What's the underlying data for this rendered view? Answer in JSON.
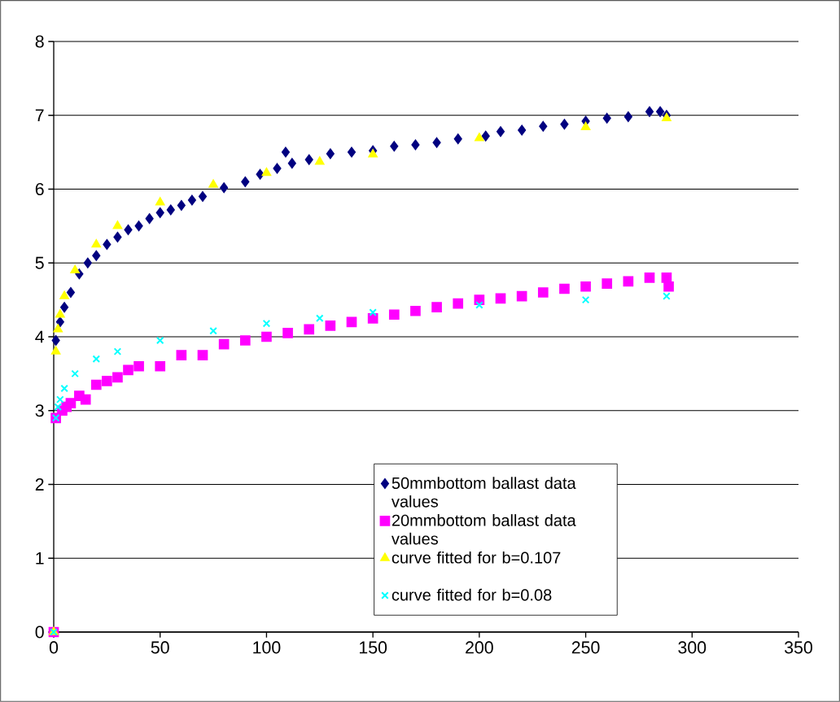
{
  "chart_data": {
    "type": "scatter",
    "xlim": [
      0,
      350
    ],
    "ylim": [
      0,
      8
    ],
    "xticks": [
      0,
      50,
      100,
      150,
      200,
      250,
      300,
      350
    ],
    "yticks": [
      0,
      1,
      2,
      3,
      4,
      5,
      6,
      7,
      8
    ],
    "grid": "y",
    "legend": "bottom right",
    "series": [
      {
        "name": "50mmbottom ballast data values",
        "color": "#000080",
        "marker": "diamond",
        "x": [
          0,
          1,
          3,
          5,
          8,
          12,
          16,
          20,
          25,
          30,
          35,
          40,
          45,
          50,
          55,
          60,
          65,
          70,
          80,
          90,
          97,
          105,
          109,
          112,
          120,
          130,
          140,
          150,
          160,
          170,
          180,
          190,
          203,
          210,
          220,
          230,
          240,
          250,
          260,
          270,
          280,
          285,
          288
        ],
        "values": [
          0,
          3.95,
          4.2,
          4.4,
          4.6,
          4.85,
          5.0,
          5.1,
          5.25,
          5.35,
          5.45,
          5.5,
          5.6,
          5.68,
          5.72,
          5.78,
          5.85,
          5.9,
          6.02,
          6.1,
          6.2,
          6.28,
          6.5,
          6.35,
          6.4,
          6.48,
          6.5,
          6.52,
          6.58,
          6.6,
          6.63,
          6.68,
          6.72,
          6.78,
          6.8,
          6.85,
          6.88,
          6.92,
          6.96,
          6.98,
          7.05,
          7.05,
          7.0
        ]
      },
      {
        "name": "20mmbottom ballast data values",
        "color": "#ff00ff",
        "marker": "square",
        "x": [
          0,
          1,
          4,
          6,
          8,
          12,
          15,
          20,
          25,
          30,
          35,
          40,
          50,
          60,
          70,
          80,
          90,
          100,
          110,
          120,
          130,
          140,
          150,
          160,
          170,
          180,
          190,
          200,
          210,
          220,
          230,
          240,
          250,
          260,
          270,
          280,
          288,
          289
        ],
        "values": [
          0,
          2.9,
          3.0,
          3.05,
          3.1,
          3.2,
          3.15,
          3.35,
          3.4,
          3.45,
          3.55,
          3.6,
          3.6,
          3.75,
          3.75,
          3.9,
          3.95,
          4.0,
          4.05,
          4.1,
          4.15,
          4.2,
          4.25,
          4.3,
          4.35,
          4.4,
          4.45,
          4.5,
          4.52,
          4.55,
          4.6,
          4.65,
          4.68,
          4.72,
          4.75,
          4.8,
          4.8,
          4.68
        ]
      },
      {
        "name": "curve fitted for b=0.107",
        "color": "#ffff00",
        "marker": "triangle",
        "x": [
          0,
          1,
          2,
          3,
          5,
          10,
          20,
          30,
          50,
          75,
          100,
          125,
          150,
          200,
          250,
          288
        ],
        "values": [
          0,
          3.8,
          4.1,
          4.3,
          4.55,
          4.9,
          5.25,
          5.5,
          5.82,
          6.06,
          6.22,
          6.37,
          6.47,
          6.69,
          6.84,
          6.96
        ]
      },
      {
        "name": "curve fitted for b=0.08",
        "color": "#00ffff",
        "marker": "cross",
        "x": [
          0,
          1,
          2,
          3,
          5,
          10,
          20,
          30,
          50,
          75,
          100,
          125,
          150,
          200,
          250,
          288
        ],
        "values": [
          0,
          2.9,
          3.05,
          3.15,
          3.3,
          3.5,
          3.7,
          3.8,
          3.95,
          4.08,
          4.18,
          4.25,
          4.33,
          4.43,
          4.5,
          4.55
        ]
      }
    ]
  }
}
